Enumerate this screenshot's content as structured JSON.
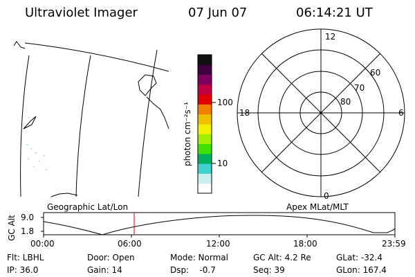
{
  "header": {
    "title": "Ultraviolet Imager",
    "date": "07 Jun 07",
    "time": "06:14:21 UT"
  },
  "colorbar": {
    "unit_label": "photon cm⁻²s⁻¹",
    "tick_100": "100",
    "tick_10": "10",
    "colors_bottom_to_top": [
      "#ffffff",
      "#c8f0f0",
      "#40d0d0",
      "#00b060",
      "#40e000",
      "#a0f000",
      "#f0f000",
      "#f0c000",
      "#f08000",
      "#e00000",
      "#c00040",
      "#800060",
      "#400040",
      "#101010"
    ]
  },
  "geo_map": {
    "label": "Geographic Lat/Lon"
  },
  "polar_plot": {
    "label": "Apex MLat/MLT",
    "mlt_top": "12",
    "mlt_left": "18",
    "mlt_right": "6",
    "mlt_bottom": "0",
    "lat_60": "60",
    "lat_70": "70",
    "lat_80": "80"
  },
  "altitude_plot": {
    "axis_label": "GC Alt",
    "y_max_label": "9.0",
    "y_min_label": "1.8",
    "x_ticks": [
      "00:00",
      "06:00",
      "12:00",
      "18:00",
      "23:59"
    ],
    "marker_time": "06:14",
    "marker_color": "#d00000"
  },
  "status": {
    "flt": "Flt: LBHL",
    "ip": "IP: 36.0",
    "door": "Door: Open",
    "gain": "Gain: 14",
    "mode": "Mode: Normal",
    "dsp": "Dsp:    -0.7",
    "gc_alt": "GC Alt: 4.2 Re",
    "seq": "Seq: 39",
    "glat": "GLat: -32.4",
    "glon": "GLon: 167.4"
  }
}
